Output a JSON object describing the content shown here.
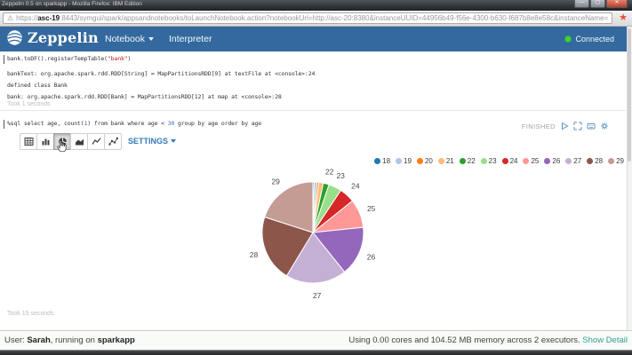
{
  "browser": {
    "title": "Zeppelin 0.5 on sparkapp - Mozilla Firefox: IBM Edition",
    "url_prefix": "https://",
    "url_domain": "asc-19",
    "url_rest": ":8443/symgui/spark/appsandnotebooks/toLaunchNotebook.action?notebookUrl=http://asc-20:8380&instanceUUID=44956b49-f56e-4300-b630-f687b8e8e58c&instanceName=sparkapp&notebookName=",
    "warning_icon": "warning-triangle-icon",
    "bookmark_icon": "star-icon",
    "window_buttons": [
      "minimize",
      "maximize",
      "close"
    ]
  },
  "navbar": {
    "brand": "Zeppelin",
    "menu_notebook": "Notebook",
    "menu_interpreter": "Interpreter",
    "status": "Connected",
    "colors": {
      "bg": "#33699e",
      "connected_dot": "#3ed23e"
    }
  },
  "paragraph1": {
    "code_segments": [
      {
        "t": "bank.toDF().registerTempTable("
      },
      {
        "t": "\"bank\"",
        "c": "string"
      },
      {
        "t": ")"
      }
    ],
    "output_lines": [
      "bankText: org.apache.spark.rdd.RDD[String] = MapPartitionsRDD[9] at textFile at <console>:24",
      "defined class Bank",
      "bank: org.apache.spark.rdd.RDD[Bank] = MapPartitionsRDD[12] at map at <console>:28"
    ],
    "took": "Took 1 seconds"
  },
  "paragraph2": {
    "sql_segments": [
      {
        "t": "%sql select age, count("
      },
      {
        "t": "1",
        "c": "number"
      },
      {
        "t": ") from bank where age < "
      },
      {
        "t": "30",
        "c": "number"
      },
      {
        "t": " group by age order by age"
      }
    ],
    "status": "FINISHED",
    "control_icons": [
      "play-icon",
      "expand-icon",
      "editor-icon",
      "gear-icon"
    ],
    "toolbar": {
      "chart_buttons": [
        "table",
        "bar",
        "pie",
        "area",
        "line",
        "scatter"
      ],
      "active_button": "pie",
      "settings_label": "SETTINGS"
    },
    "took": "Took 15 seconds"
  },
  "chart_data": {
    "type": "pie",
    "title": "",
    "categories": [
      "18",
      "19",
      "20",
      "21",
      "22",
      "23",
      "24",
      "25",
      "26",
      "27",
      "28",
      "29"
    ],
    "values": [
      2,
      4,
      3,
      7,
      9,
      20,
      24,
      44,
      77,
      94,
      103,
      97
    ],
    "colors": [
      "#1f77b4",
      "#aec7e8",
      "#ff7f0e",
      "#ffbb78",
      "#2ca02c",
      "#98df8a",
      "#d62728",
      "#ff9896",
      "#9467bd",
      "#c5b0d5",
      "#8c564b",
      "#c49c94"
    ],
    "legend_position": "top-right",
    "legend_entries": [
      "18",
      "19",
      "20",
      "21",
      "22",
      "23",
      "24",
      "25",
      "26",
      "27",
      "28",
      "29"
    ],
    "label_min_angle_deg": 6,
    "labeled_slices": [
      "22",
      "23",
      "24",
      "25",
      "26",
      "27",
      "28",
      "29"
    ]
  },
  "footer": {
    "user_label": "User: ",
    "user_name": "Sarah",
    "running_text": ", running on ",
    "app_name": "sparkapp",
    "usage_text": "Using 0.00 cores and 104.52 MB memory across 2 executors.",
    "detail_link": "Show Detail"
  },
  "colors": {
    "navbar_bg": "#33699e",
    "connected_green": "#3ed23e",
    "string_token": "#c41a16",
    "number_token": "#3c64c8",
    "settings_link": "#337ab7",
    "detail_link": "#2fa190",
    "bookmark_star": "#e2503c"
  }
}
